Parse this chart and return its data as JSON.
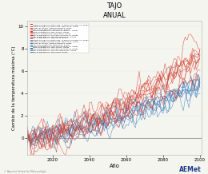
{
  "title": "TAJO",
  "subtitle": "ANUAL",
  "xlabel": "Año",
  "ylabel": "Cambio de la temperatura máxima (°C)",
  "xlim": [
    2006,
    2101
  ],
  "ylim": [
    -1.5,
    10.5
  ],
  "yticks": [
    0,
    2,
    4,
    6,
    8,
    10
  ],
  "xticks": [
    2020,
    2040,
    2060,
    2080,
    2100
  ],
  "x_start": 2006,
  "x_end": 2100,
  "n_red_lines": 10,
  "n_blue_lines": 9,
  "background_color": "#f5f5f0",
  "plot_bg": "#f5f5f0",
  "legend_labels_red": [
    "CNRM-CM5(RCA5)-CNRM-CM5: CLMcom-CLS-Macc-v1  RCPas",
    "CNRM-CM5(RCA5)-CNRM-CM5: SMHI-RCa4  RCPas",
    "ICHEC-EC-EARTH: KNMI-RACMO22E  RCPas",
    "IPSL-IPSL-CLMus-v00: SMHI-RCa4  RCPas",
    "MNO-HadGEM2-ES: CLMcom-CLS-Macc-v1  RCPas",
    "MNO-HadGEM2-ES: SMHI-RCG15  RCPas",
    "MPICHC-HadGEM2-ES: SMHI-RCa4  RCPas",
    "MPI-M-MPI-ESM-LR: CLMcom-CLS-Macc-v1  RCPas",
    "MPI-M-MPI-ESM-LR: MPI-CDC-REMO2009  RCPas",
    "MPI-M-MPI-ESM-LR: SMHI-RCa4  RCPas"
  ],
  "legend_labels_blue": [
    "CNRM-CM5(RCA5)-CNRM-CM5: CLMcom-CLS-Macc-v1  RCPas",
    "CNRM-CM5(RCA5)-CNRM-CM5: SMHI-RCa4  RCPas",
    "ICHEC-EC-EARTH: KNMI-RACMO22E  RCPas",
    "IPSL-IPSL-CLMus-v00: SMHI-RCa4  RCPas",
    "MNO-HadGEM2-ES: CLMcom-CLS-Macc-v1  RCPas",
    "MNO-HadGEM2-ES: SMHI-RCG15  RCPas",
    "MPI-M-MPI-ESM-LR: CLMcom-CLS-Macc-v1  RCPas",
    "MPI-M-MPI-ESM-LR: MPI-CDC-REMO2009  RCPas",
    "MPI-M-MPI-ESM-LR: SMHI-RCa4  RCPas"
  ],
  "seed": 42
}
